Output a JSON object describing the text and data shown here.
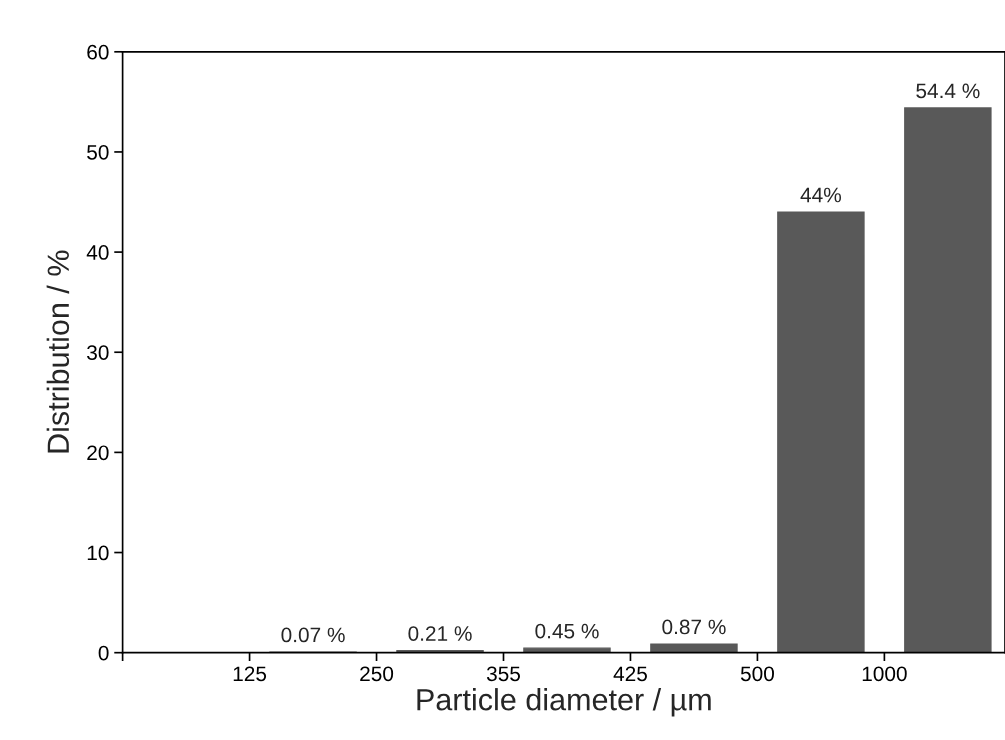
{
  "chart_data": {
    "type": "bar",
    "xlabel": "Particle diameter / µm",
    "ylabel": "Distribution / %",
    "categories": [
      null,
      null,
      "125",
      null,
      "250",
      null,
      "355",
      null,
      "425",
      null,
      "500",
      null,
      "1000",
      null
    ],
    "values": [
      null,
      null,
      null,
      0.07,
      null,
      0.21,
      null,
      0.45,
      null,
      0.87,
      null,
      44,
      null,
      54.4
    ],
    "value_labels": [
      null,
      null,
      null,
      "0.07 %",
      null,
      "0.21 %",
      null,
      "0.45 %",
      null,
      "0.87 %",
      null,
      "44%",
      null,
      "54.4 %"
    ],
    "color": "#595959",
    "ylim": [
      0,
      60
    ],
    "yticks": [
      0,
      10,
      20,
      30,
      40,
      50,
      60
    ],
    "grid": false,
    "legend": false
  }
}
